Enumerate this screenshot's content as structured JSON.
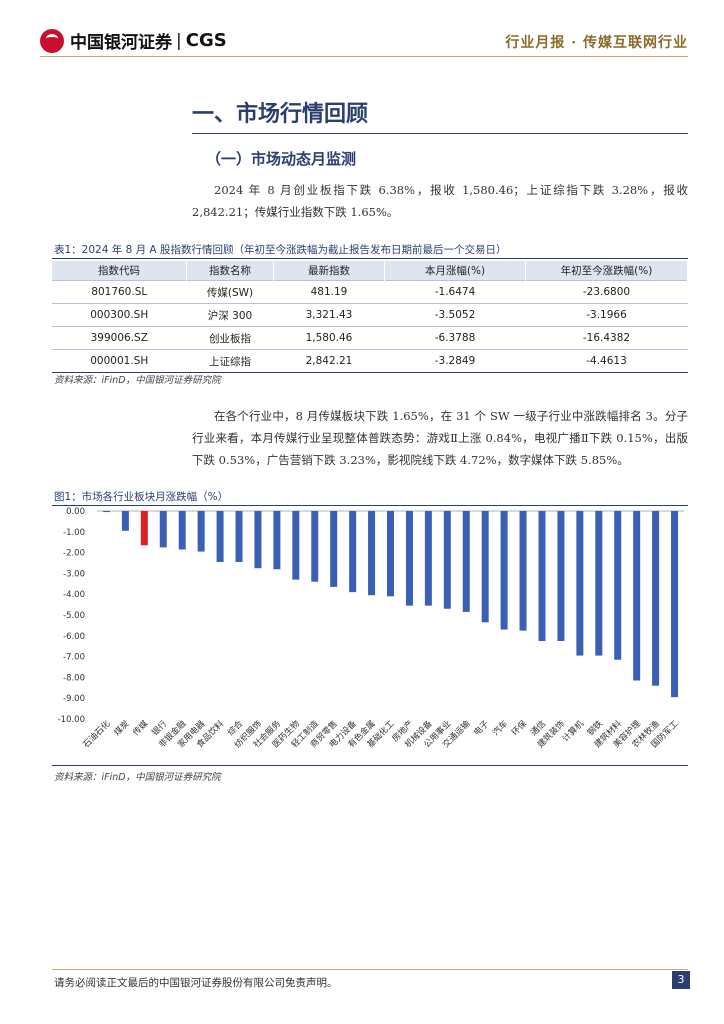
{
  "header": {
    "brand_cn": "中国银河证券",
    "brand_sep": "|",
    "brand_en": "CGS",
    "report_type": "行业月报 · 传媒互联网行业",
    "brand_color": "#c8102e"
  },
  "section_title": "一、市场行情回顾",
  "subsection_title": "（一）市场动态月监测",
  "paragraph1": "2024 年 8 月创业板指下跌 6.38%，报收 1,580.46；上证综指下跌 3.28%，报收 2,842.21；传媒行业指数下跌 1.65%。",
  "table": {
    "caption": "表1：2024 年 8 月 A 股指数行情回顾（年初至今涨跌幅为截止报告发布日期前最后一个交易日）",
    "headers": [
      "指数代码",
      "指数名称",
      "最新指数",
      "本月涨幅(%)",
      "年初至今涨跌幅(%)"
    ],
    "rows": [
      [
        "801760.SL",
        "传媒(SW)",
        "481.19",
        "-1.6474",
        "-23.6800"
      ],
      [
        "000300.SH",
        "沪深 300",
        "3,321.43",
        "-3.5052",
        "-3.1966"
      ],
      [
        "399006.SZ",
        "创业板指",
        "1,580.46",
        "-6.3788",
        "-16.4382"
      ],
      [
        "000001.SH",
        "上证综指",
        "2,842.21",
        "-3.2849",
        "-4.4613"
      ]
    ],
    "source": "资料来源：iFinD，中国银河证券研究院"
  },
  "paragraph2": "在各个行业中，8 月传媒板块下跌 1.65%，在 31 个 SW 一级子行业中涨跌幅排名 3。分子行业来看，本月传媒行业呈现整体普跌态势：游戏Ⅱ上涨 0.84%，电视广播Ⅱ下跌 0.15%，出版下跌 0.53%，广告营销下跌 3.23%，影视院线下跌 4.72%，数字媒体下跌 5.85%。",
  "figure": {
    "caption": "图1：市场各行业板块月涨跌幅（%）",
    "source": "资料来源：iFinD，中国银河证券研究院"
  },
  "chart_data": {
    "type": "bar",
    "categories": [
      "石油石化",
      "煤炭",
      "传媒",
      "银行",
      "非银金融",
      "家用电器",
      "食品饮料",
      "综合",
      "纺织服饰",
      "社会服务",
      "医药生物",
      "轻工制造",
      "商贸零售",
      "电力设备",
      "有色金属",
      "基础化工",
      "房地产",
      "机械设备",
      "公用事业",
      "交通运输",
      "电子",
      "汽车",
      "环保",
      "通信",
      "建筑装饰",
      "计算机",
      "钢铁",
      "建筑材料",
      "美容护理",
      "农林牧渔",
      "国防军工"
    ],
    "values": [
      -0.05,
      -0.95,
      -1.65,
      -1.75,
      -1.85,
      -1.95,
      -2.45,
      -2.45,
      -2.75,
      -2.8,
      -3.3,
      -3.4,
      -3.65,
      -3.9,
      -4.05,
      -4.1,
      -4.55,
      -4.55,
      -4.7,
      -4.85,
      -5.35,
      -5.7,
      -5.75,
      -6.25,
      -6.25,
      -6.95,
      -6.95,
      -7.15,
      -8.15,
      -8.4,
      -8.95
    ],
    "highlight_category": "传媒",
    "bar_color": "#3a5fb5",
    "highlight_color": "#e02020",
    "ylim": [
      -10,
      0
    ],
    "yticks": [
      "0.00",
      "-1.00",
      "-2.00",
      "-3.00",
      "-4.00",
      "-5.00",
      "-6.00",
      "-7.00",
      "-8.00",
      "-9.00",
      "-10.00"
    ],
    "ytick_values": [
      0,
      -1,
      -2,
      -3,
      -4,
      -5,
      -6,
      -7,
      -8,
      -9,
      -10
    ],
    "grid": false,
    "legend": "none",
    "title": "",
    "xlabel": "",
    "ylabel": ""
  },
  "footer": {
    "disclaimer": "请务必阅读正文最后的中国银河证券股份有限公司免责声明。",
    "page_number": "3"
  }
}
